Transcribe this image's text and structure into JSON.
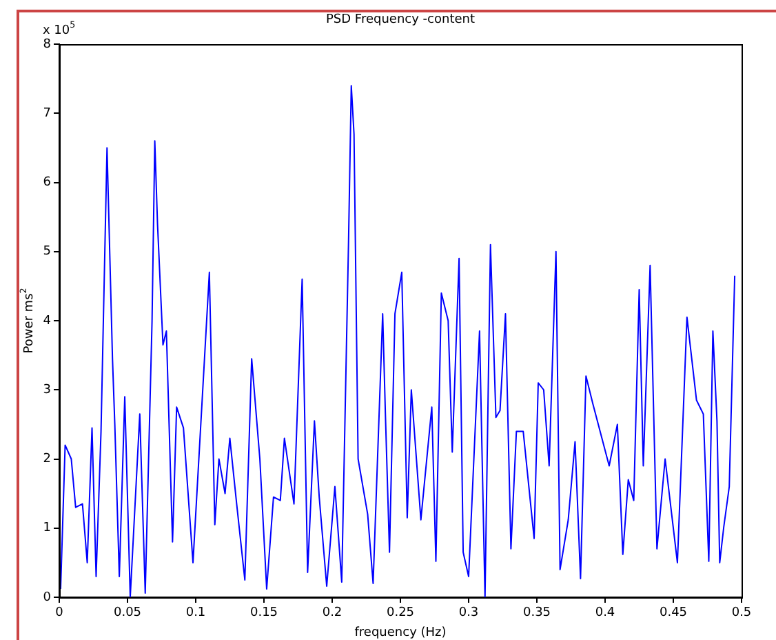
{
  "chart_data": {
    "type": "line",
    "title": "PSD Frequency -content",
    "xlabel": "frequency (Hz)",
    "ylabel": "Power ms$^{2}$",
    "annotations": [
      "x 10$^{5}$"
    ],
    "x": [
      0.001,
      0.0043,
      0.0088,
      0.012,
      0.017,
      0.0205,
      0.024,
      0.027,
      0.0306,
      0.035,
      0.039,
      0.0407,
      0.044,
      0.048,
      0.052,
      0.059,
      0.063,
      0.068,
      0.07,
      0.072,
      0.076,
      0.0785,
      0.083,
      0.086,
      0.091,
      0.098,
      0.11,
      0.114,
      0.117,
      0.1215,
      0.125,
      0.13,
      0.136,
      0.141,
      0.147,
      0.152,
      0.157,
      0.162,
      0.165,
      0.172,
      0.178,
      0.182,
      0.187,
      0.1905,
      0.196,
      0.202,
      0.207,
      0.212,
      0.214,
      0.216,
      0.219,
      0.226,
      0.23,
      0.237,
      0.239,
      0.242,
      0.246,
      0.251,
      0.255,
      0.258,
      0.265,
      0.273,
      0.276,
      0.28,
      0.285,
      0.288,
      0.293,
      0.296,
      0.3,
      0.308,
      0.312,
      0.316,
      0.32,
      0.323,
      0.327,
      0.331,
      0.335,
      0.34,
      0.348,
      0.351,
      0.355,
      0.359,
      0.364,
      0.367,
      0.373,
      0.378,
      0.382,
      0.386,
      0.391,
      0.403,
      0.409,
      0.413,
      0.417,
      0.421,
      0.425,
      0.428,
      0.433,
      0.438,
      0.444,
      0.453,
      0.46,
      0.467,
      0.472,
      0.476,
      0.479,
      0.482,
      0.484,
      0.487,
      0.491,
      0.495
    ],
    "series": [
      {
        "color": "#0000ff",
        "values": [
          0.12,
          2.2,
          2.0,
          1.3,
          1.35,
          0.5,
          2.45,
          0.3,
          2.4,
          6.5,
          3.45,
          2.5,
          0.3,
          2.9,
          0,
          2.65,
          0.06,
          4.0,
          6.6,
          5.4,
          3.65,
          3.85,
          0.8,
          2.75,
          2.45,
          0.5,
          4.7,
          1.05,
          2.0,
          1.5,
          2.3,
          1.35,
          0.25,
          3.45,
          2.0,
          0.12,
          1.45,
          1.4,
          2.3,
          1.35,
          4.6,
          0.36,
          2.55,
          1.45,
          0.16,
          1.6,
          0.22,
          5.15,
          7.4,
          6.7,
          2.0,
          1.2,
          0.2,
          4.1,
          2.65,
          0.65,
          4.1,
          4.7,
          1.15,
          3.0,
          1.12,
          2.75,
          0.52,
          4.4,
          4.0,
          2.1,
          4.9,
          0.65,
          0.3,
          3.85,
          0,
          5.1,
          2.6,
          2.7,
          4.1,
          0.7,
          2.4,
          2.4,
          0.85,
          3.1,
          3.0,
          1.9,
          5.0,
          0.4,
          1.12,
          2.25,
          0.27,
          3.2,
          2.8,
          1.9,
          2.5,
          0.62,
          1.7,
          1.4,
          4.45,
          1.9,
          4.8,
          0.7,
          2.0,
          0.5,
          4.05,
          2.85,
          2.65,
          0.52,
          3.85,
          2.55,
          0.5,
          1.02,
          1.6,
          4.65
        ]
      }
    ],
    "xlim": [
      0,
      0.5
    ],
    "xticks": [
      0,
      0.05,
      0.1,
      0.15,
      0.2,
      0.25,
      0.3,
      0.35,
      0.4,
      0.45,
      0.5
    ],
    "ylim": [
      0,
      8
    ],
    "yticks": [
      0,
      1,
      2,
      3,
      4,
      5,
      6,
      7,
      8
    ],
    "grid": false,
    "legend": false,
    "marker": "none",
    "line_style": "solid"
  }
}
